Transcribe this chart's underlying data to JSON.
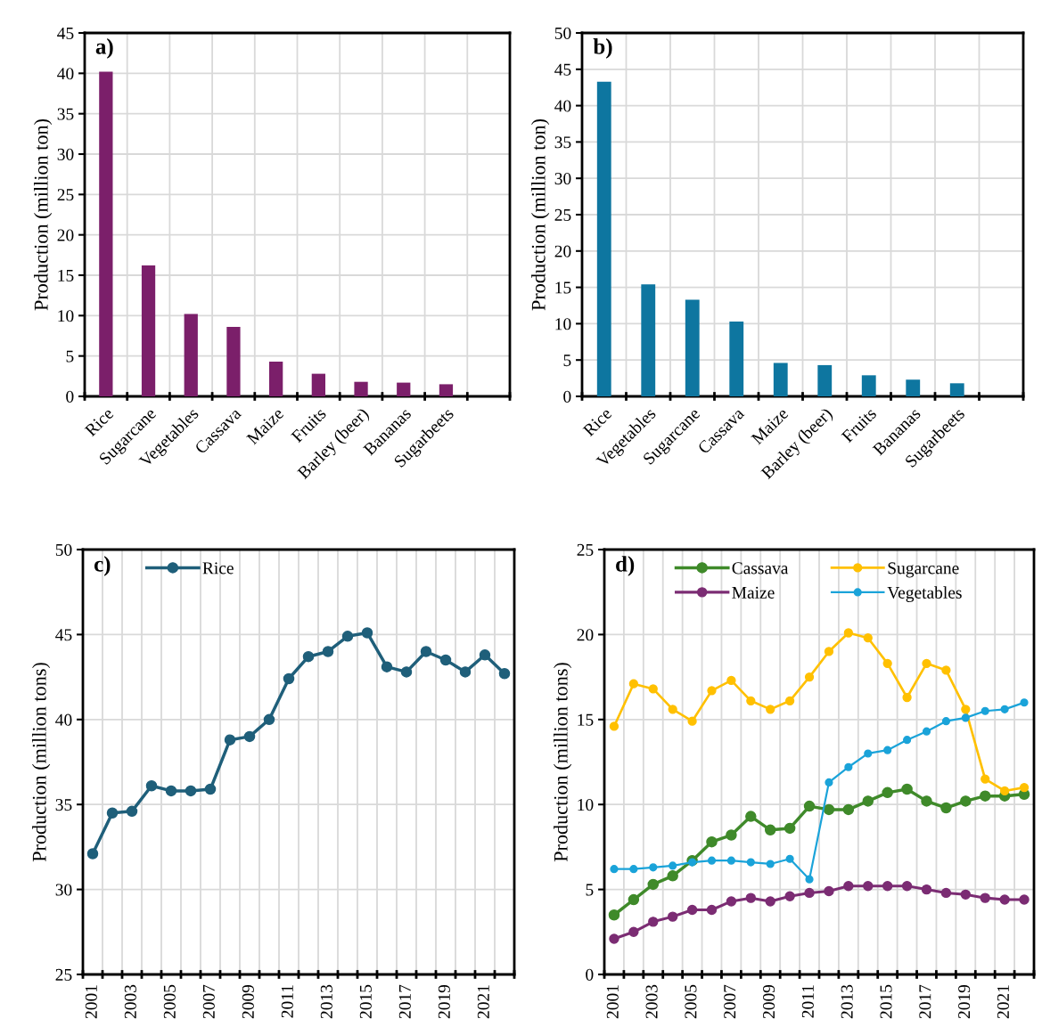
{
  "chart_data": [
    {
      "type": "bar",
      "title": "a)",
      "ylabel": "Production (million ton)",
      "categories": [
        "Rice",
        "Sugarcane",
        "Vegetables",
        "Cassava",
        "Maize",
        "Fruits",
        "Barley (beer)",
        "Bananas",
        "Sugarbeets",
        null
      ],
      "values": [
        40.2,
        16.2,
        10.2,
        8.6,
        4.3,
        2.8,
        1.8,
        1.7,
        1.5,
        null
      ],
      "color": "#7b1f6a",
      "ylim": [
        0,
        45
      ],
      "yticks": [
        0,
        5,
        10,
        15,
        20,
        25,
        30,
        35,
        40,
        45
      ],
      "grid": true
    },
    {
      "type": "bar",
      "title": "b)",
      "ylabel": "Production (million ton)",
      "categories": [
        "Rice",
        "Vegetables",
        "Sugarcane",
        "Cassava",
        "Maize",
        "Barley (beer)",
        "Fruits",
        "Bananas",
        "Sugarbeets",
        null
      ],
      "values": [
        43.3,
        15.4,
        13.3,
        10.3,
        4.6,
        4.3,
        2.9,
        2.3,
        1.8,
        null
      ],
      "color": "#0e76a0",
      "ylim": [
        0,
        50
      ],
      "yticks": [
        0,
        5,
        10,
        15,
        20,
        25,
        30,
        35,
        40,
        45,
        50
      ],
      "grid": true
    },
    {
      "type": "line",
      "title": "c)",
      "ylabel": "Production (million tons)",
      "categories": [
        "2001",
        null,
        "2003",
        null,
        "2005",
        null,
        "2007",
        null,
        "2009",
        null,
        "2011",
        null,
        "2013",
        null,
        "2015",
        null,
        "2017",
        null,
        "2019",
        null,
        "2021",
        null
      ],
      "series": [
        {
          "name": "Rice",
          "color": "#1f5f7a",
          "values": [
            32.1,
            34.5,
            34.6,
            36.1,
            35.8,
            35.8,
            35.9,
            38.8,
            39.0,
            40.0,
            42.4,
            43.7,
            44.0,
            44.9,
            45.1,
            43.1,
            42.8,
            44.0,
            43.5,
            42.8,
            43.8,
            42.7
          ]
        }
      ],
      "ylim": [
        25,
        50
      ],
      "yticks": [
        25,
        30,
        35,
        40,
        45,
        50
      ],
      "grid": true,
      "legend": "top left",
      "marker": "circle",
      "line_style": "solid"
    },
    {
      "type": "line",
      "title": "d)",
      "ylabel": "Production (million tons)",
      "categories": [
        "2001",
        null,
        "2003",
        null,
        "2005",
        null,
        "2007",
        null,
        "2009",
        null,
        "2011",
        null,
        "2013",
        null,
        "2015",
        null,
        "2017",
        null,
        "2019",
        null,
        "2021",
        null
      ],
      "series": [
        {
          "name": "Cassava",
          "color": "#3f8a2a",
          "values": [
            3.5,
            4.4,
            5.3,
            5.8,
            6.7,
            7.8,
            8.2,
            9.3,
            8.5,
            8.6,
            9.9,
            9.7,
            9.7,
            10.2,
            10.7,
            10.9,
            10.2,
            9.8,
            10.2,
            10.5,
            10.5,
            10.6
          ]
        },
        {
          "name": "Maize",
          "color": "#7b2c73",
          "values": [
            2.1,
            2.5,
            3.1,
            3.4,
            3.8,
            3.8,
            4.3,
            4.5,
            4.3,
            4.6,
            4.8,
            4.9,
            5.2,
            5.2,
            5.2,
            5.2,
            5.0,
            4.8,
            4.7,
            4.5,
            4.4,
            4.4
          ]
        },
        {
          "name": "Sugarcane",
          "color": "#ffc000",
          "values": [
            14.6,
            17.1,
            16.8,
            15.6,
            14.9,
            16.7,
            17.3,
            16.1,
            15.6,
            16.1,
            17.5,
            19.0,
            20.1,
            19.8,
            18.3,
            16.3,
            18.3,
            17.9,
            15.6,
            11.5,
            10.8,
            11.0
          ]
        },
        {
          "name": "Vegetables",
          "color": "#1aa3d9",
          "values": [
            6.2,
            6.2,
            6.3,
            6.4,
            6.6,
            6.7,
            6.7,
            6.6,
            6.5,
            6.8,
            5.6,
            11.3,
            12.2,
            13.0,
            13.2,
            13.8,
            14.3,
            14.9,
            15.1,
            15.5,
            15.6,
            16.0
          ]
        }
      ],
      "ylim": [
        0,
        25
      ],
      "yticks": [
        0,
        5,
        10,
        15,
        20,
        25
      ],
      "grid": true,
      "legend": "top",
      "marker": "circle",
      "line_style": "solid"
    }
  ]
}
